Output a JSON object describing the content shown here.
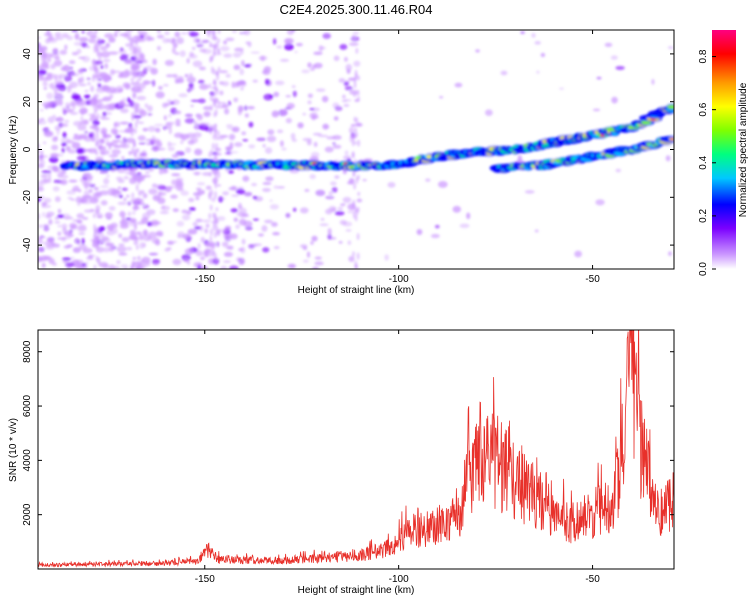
{
  "title": "C2E4.2025.300.11.46.R04",
  "chart_data": [
    {
      "type": "heatmap",
      "name": "spectrogram",
      "xlabel": "Height of straight line (km)",
      "ylabel": "Frequency (Hz)",
      "xlim": [
        -193,
        -29
      ],
      "ylim": [
        -50,
        50
      ],
      "xticks": [
        -150,
        -100,
        -50
      ],
      "yticks": [
        -40,
        -20,
        0,
        20,
        40
      ],
      "colorbar": {
        "label": "Normalized spectral amplitude",
        "range": [
          0.0,
          0.9
        ],
        "ticks": [
          0.0,
          0.2,
          0.4,
          0.6,
          0.8
        ],
        "colors": [
          "#ffffff",
          "#cc99ff",
          "#7b00ff",
          "#0000ff",
          "#00c8ff",
          "#00ff80",
          "#80ff00",
          "#ffff00",
          "#ff9900",
          "#ff0000",
          "#ff0080"
        ]
      },
      "main_track": [
        [
          -186,
          -7
        ],
        [
          -160,
          -6
        ],
        [
          -130,
          -6.5
        ],
        [
          -110,
          -7
        ],
        [
          -100,
          -6
        ],
        [
          -90,
          -3
        ],
        [
          -80,
          -1
        ],
        [
          -70,
          0
        ],
        [
          -60,
          3
        ],
        [
          -50,
          6
        ],
        [
          -40,
          9
        ],
        [
          -30,
          17
        ]
      ],
      "secondary_track": [
        [
          -75,
          -8
        ],
        [
          -60,
          -6
        ],
        [
          -50,
          -3
        ],
        [
          -40,
          0
        ],
        [
          -30,
          4
        ]
      ]
    },
    {
      "type": "line",
      "name": "snr",
      "xlabel": "Height of straight line (km)",
      "ylabel": "SNR (10 * v/v)",
      "xlim": [
        -193,
        -29
      ],
      "ylim": [
        0,
        8800
      ],
      "xticks": [
        -150,
        -100,
        -50
      ],
      "yticks": [
        2000,
        4000,
        6000,
        8000
      ],
      "color": "#e8302a",
      "profile": [
        [
          -193,
          150
        ],
        [
          -160,
          200
        ],
        [
          -152,
          300
        ],
        [
          -149,
          700
        ],
        [
          -147,
          350
        ],
        [
          -130,
          300
        ],
        [
          -115,
          450
        ],
        [
          -108,
          550
        ],
        [
          -102,
          800
        ],
        [
          -97,
          1400
        ],
        [
          -90,
          1500
        ],
        [
          -84,
          2000
        ],
        [
          -81,
          3400
        ],
        [
          -78,
          4500
        ],
        [
          -75,
          3800
        ],
        [
          -72,
          3500
        ],
        [
          -68,
          3000
        ],
        [
          -64,
          2600
        ],
        [
          -60,
          1900
        ],
        [
          -56,
          1700
        ],
        [
          -50,
          2000
        ],
        [
          -46,
          2300
        ],
        [
          -44,
          2800
        ],
        [
          -42,
          4500
        ],
        [
          -40,
          6800
        ],
        [
          -38,
          4800
        ],
        [
          -36,
          3500
        ],
        [
          -33,
          2000
        ],
        [
          -30,
          2500
        ],
        [
          -29,
          2800
        ]
      ],
      "peaks": [
        [
          -149,
          1000
        ],
        [
          -95,
          2300
        ],
        [
          -82,
          6000
        ],
        [
          -79,
          6500
        ],
        [
          -73,
          4700
        ],
        [
          -62,
          3700
        ],
        [
          -41,
          8700
        ],
        [
          -39,
          7600
        ]
      ]
    }
  ]
}
